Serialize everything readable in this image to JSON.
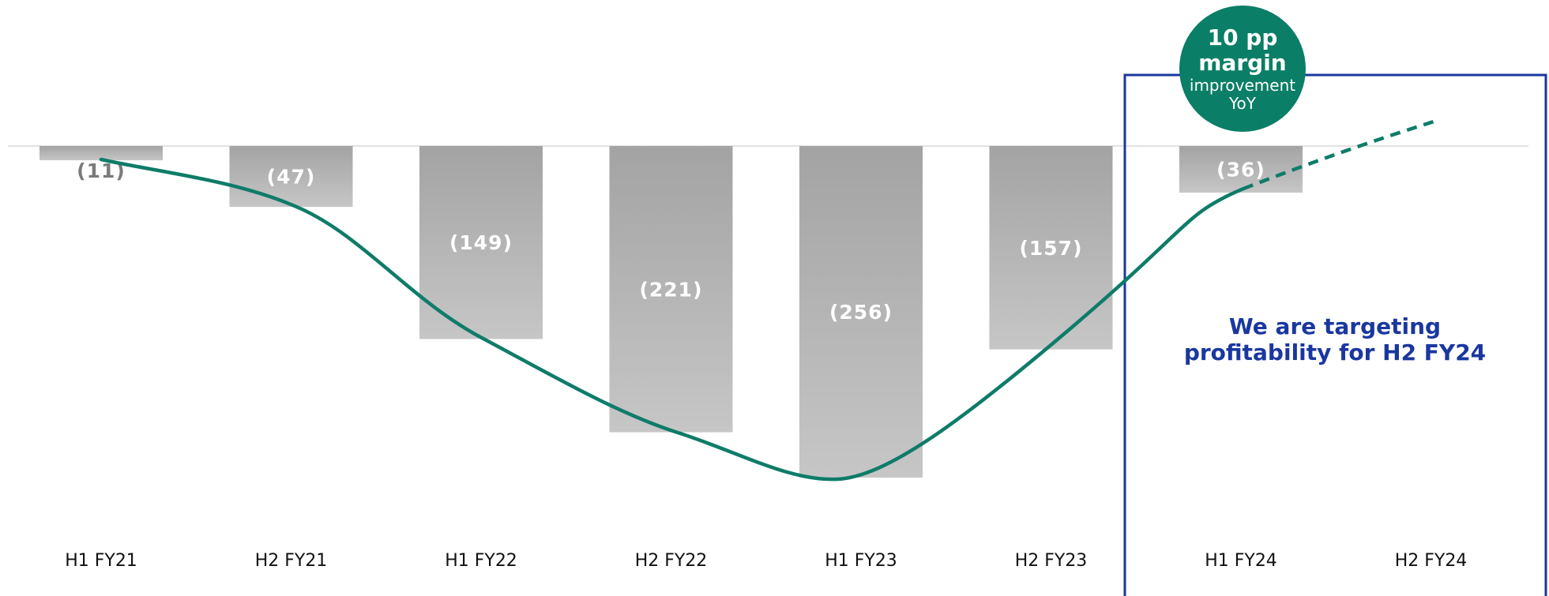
{
  "chart_data": {
    "type": "bar",
    "categories": [
      "H1 FY21",
      "H2 FY21",
      "H1 FY22",
      "H2 FY22",
      "H1 FY23",
      "H2 FY23",
      "H1 FY24",
      "H2 FY24"
    ],
    "values": [
      -11,
      -47,
      -149,
      -221,
      -256,
      -157,
      -36,
      null
    ],
    "data_labels": [
      "(11)",
      "(47)",
      "(149)",
      "(221)",
      "(256)",
      "(157)",
      "(36)",
      ""
    ],
    "title": "",
    "xlabel": "",
    "ylabel": "",
    "ylim": [
      -256,
      0
    ],
    "grid": false,
    "trend_line": {
      "style": "smooth",
      "solid_through": "H1 FY24",
      "dashed_through": "H2 FY24"
    },
    "annotations": {
      "badge": {
        "line1": "10 pp",
        "line2": "margin",
        "line3": "improvement",
        "line4": "YoY"
      },
      "target_box": {
        "line1": "We are targeting",
        "line2": "profitability for H2 FY24",
        "covers": [
          "H1 FY24",
          "H2 FY24"
        ]
      }
    }
  },
  "colors": {
    "bar_top": "#a3a3a3",
    "bar_bottom": "#c6c6c6",
    "bar_label_light": "#ffffff",
    "bar_label_dark": "#7a7a7a",
    "trend_line": "#0e7c68",
    "badge_fill": "#0a7e66",
    "target_box": "#1a37a0",
    "baseline": "#d8d8d8"
  }
}
